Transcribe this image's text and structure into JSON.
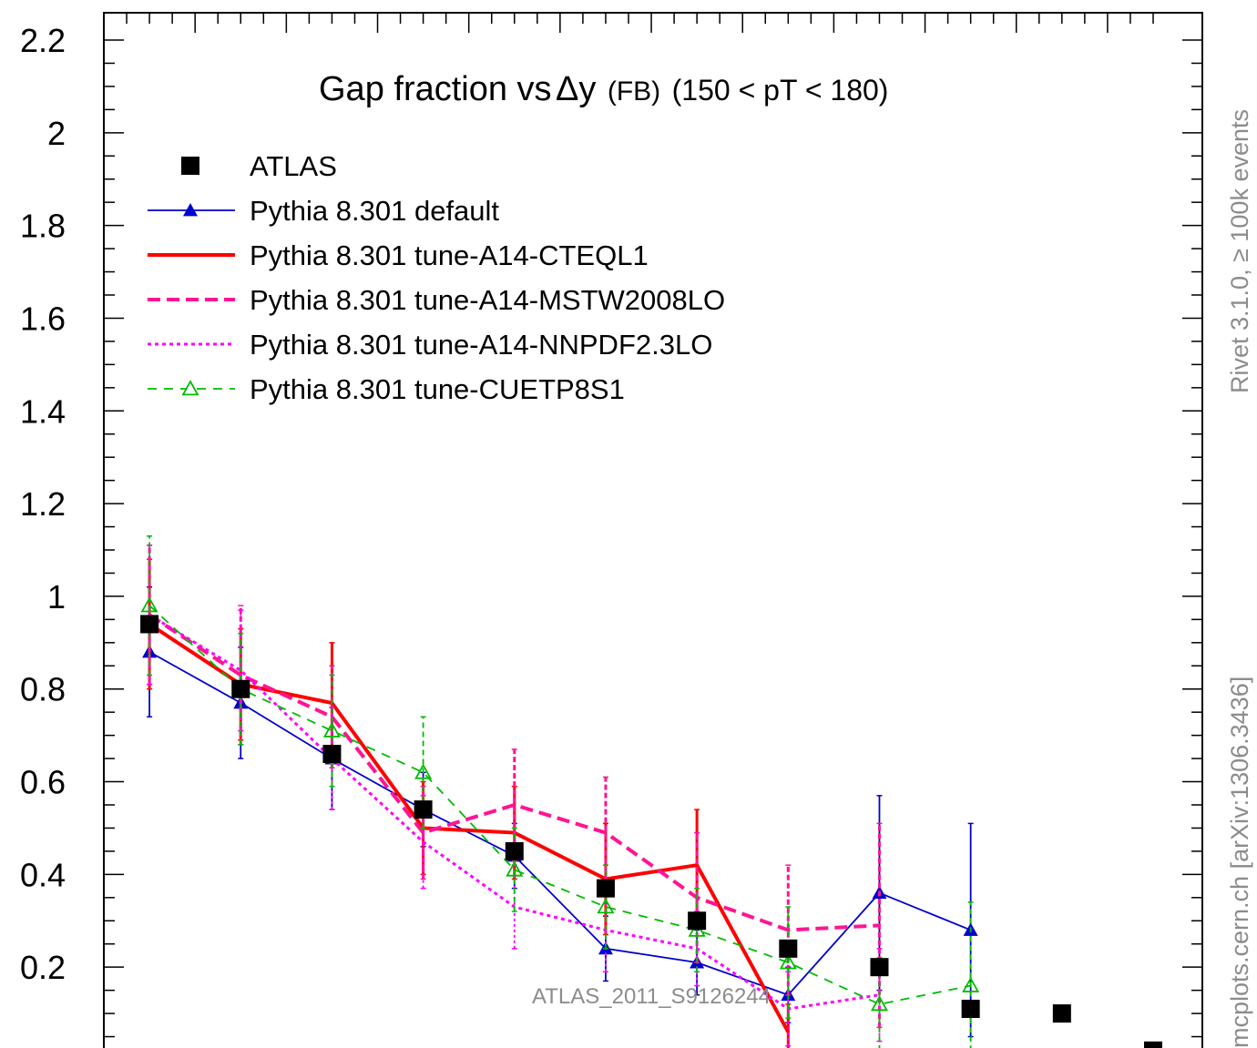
{
  "chart_data": {
    "type": "line",
    "title_main": "Gap fraction vs",
    "title_delta": "Δy",
    "title_fb": "(FB)",
    "title_range": "(150 < pT < 180)",
    "xlim": [
      0,
      11.5
    ],
    "ylim": [
      0,
      2.2
    ],
    "y_ticks": [
      "0.2",
      "0.4",
      "0.6",
      "0.8",
      "1",
      "1.2",
      "1.4",
      "1.6",
      "1.8",
      "2",
      "2.2"
    ],
    "grid": false,
    "legend_position": "top-left",
    "watermark": "ATLAS_2011_S9126244",
    "side_label_top": "Rivet 3.1.0, ≥ 100k events",
    "side_label_bottom": "mcplots.cern.ch [arXiv:1306.3436]",
    "data": {
      "name": "ATLAS",
      "color": "#000000",
      "x": [
        0.5,
        1.5,
        2.5,
        3.5,
        4.5,
        5.5,
        6.5,
        7.5,
        8.5,
        9.5,
        10.5,
        11.5
      ],
      "y": [
        0.94,
        0.8,
        0.66,
        0.54,
        0.45,
        0.37,
        0.3,
        0.24,
        0.2,
        0.11,
        0.1,
        0.02
      ]
    },
    "series": [
      {
        "name": "Pythia 8.301 default",
        "color": "#0000cc",
        "style": "solid-triangle",
        "x": [
          0.5,
          1.5,
          2.5,
          3.5,
          4.5,
          5.5,
          6.5,
          7.5,
          8.5,
          9.5
        ],
        "y": [
          0.88,
          0.77,
          0.65,
          0.54,
          0.44,
          0.24,
          0.21,
          0.14,
          0.36,
          0.28
        ],
        "err": [
          0.14,
          0.12,
          0.11,
          0.08,
          0.07,
          0.07,
          0.07,
          0.06,
          0.21,
          0.23
        ]
      },
      {
        "name": "Pythia 8.301 tune-A14-CTEQL1",
        "color": "#ff0000",
        "style": "thick-solid",
        "x": [
          0.5,
          1.5,
          2.5,
          3.5,
          4.5,
          5.5,
          6.5,
          7.5
        ],
        "y": [
          0.94,
          0.81,
          0.77,
          0.5,
          0.49,
          0.39,
          0.42,
          0.06
        ],
        "err": [
          0.14,
          0.12,
          0.13,
          0.1,
          0.1,
          0.12,
          0.12,
          0.06
        ]
      },
      {
        "name": "Pythia 8.301 tune-A14-MSTW2008LO",
        "color": "#ff1493",
        "style": "dashed",
        "x": [
          0.5,
          1.5,
          2.5,
          3.5,
          4.5,
          5.5,
          6.5,
          7.5,
          8.5
        ],
        "y": [
          0.96,
          0.83,
          0.74,
          0.49,
          0.55,
          0.49,
          0.35,
          0.28,
          0.29
        ],
        "err": [
          0.15,
          0.15,
          0.11,
          0.1,
          0.12,
          0.12,
          0.14,
          0.14,
          0.22
        ]
      },
      {
        "name": "Pythia 8.301 tune-A14-NNPDF2.3LO",
        "color": "#ff00ff",
        "style": "dotted",
        "x": [
          0.5,
          1.5,
          2.5,
          3.5,
          4.5,
          5.5,
          6.5,
          7.5,
          8.5
        ],
        "y": [
          0.96,
          0.84,
          0.65,
          0.47,
          0.33,
          0.28,
          0.24,
          0.11,
          0.14
        ],
        "err": [
          0.15,
          0.13,
          0.11,
          0.1,
          0.09,
          0.09,
          0.08,
          0.08,
          0.1
        ]
      },
      {
        "name": "Pythia 8.301 tune-CUETP8S1",
        "color": "#00bb00",
        "style": "dashed-open-triangle",
        "x": [
          0.5,
          1.5,
          2.5,
          3.5,
          4.5,
          5.5,
          6.5,
          7.5,
          8.5,
          9.5
        ],
        "y": [
          0.98,
          0.8,
          0.71,
          0.62,
          0.41,
          0.33,
          0.28,
          0.21,
          0.12,
          0.16
        ],
        "err": [
          0.15,
          0.12,
          0.12,
          0.12,
          0.09,
          0.09,
          0.09,
          0.12,
          0.1,
          0.18
        ]
      }
    ]
  }
}
